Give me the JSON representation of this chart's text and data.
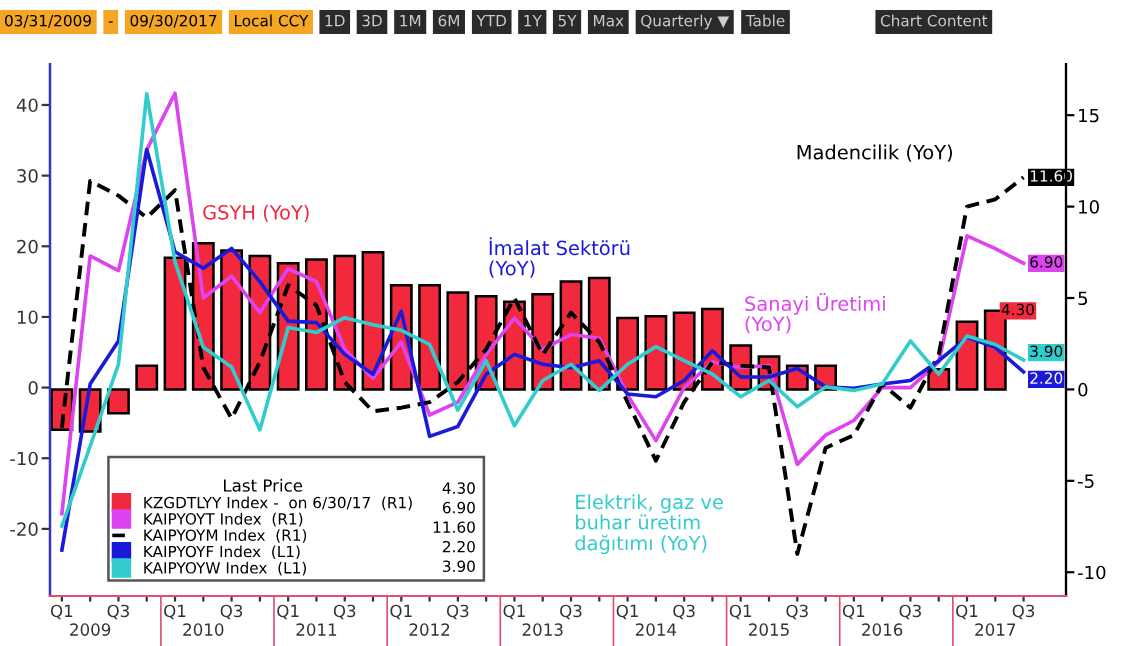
{
  "chart_data": {
    "type": "bar",
    "categories": [
      "Q1",
      "\n2009",
      "Q3",
      null,
      "Q1",
      "\n2010",
      "Q3",
      null,
      "Q1",
      "\n2011",
      "Q3",
      null,
      "Q1",
      "\n2012",
      "Q3",
      null,
      "Q1",
      "\n2013",
      "Q3",
      null,
      "Q1",
      "\n2014",
      "Q3",
      null,
      "Q1",
      "\n2015",
      "Q3",
      null,
      "Q1",
      "\n2016",
      "Q3",
      null,
      "Q1",
      "\n2017",
      "Q3"
    ],
    "series": [
      {
        "name": "KZGDTLYY Index -  on 6/30/17  (R1)",
        "type": "bar",
        "axis": "y2",
        "color": "#f2283c",
        "values": [
          -2.2,
          -2.3,
          -1.3,
          1.3,
          7.2,
          8.0,
          7.6,
          7.3,
          6.9,
          7.1,
          7.3,
          7.5,
          5.7,
          5.7,
          5.3,
          5.1,
          4.8,
          5.2,
          5.9,
          6.1,
          3.9,
          4.0,
          4.2,
          4.4,
          2.4,
          1.8,
          1.3,
          1.3,
          null,
          null,
          null,
          1.1,
          3.7,
          4.3,
          null
        ],
        "value_labels": [
          null,
          null,
          null,
          null,
          null,
          null,
          null,
          null,
          null,
          null,
          null,
          null,
          null,
          null,
          null,
          null,
          null,
          null,
          null,
          null,
          null,
          null,
          null,
          null,
          null,
          null,
          null,
          null,
          null,
          null,
          null,
          null,
          null,
          "4.30",
          null
        ]
      },
      {
        "name": "KAIPYOYT Index  (R1)",
        "type": "line",
        "axis": "y2",
        "color": "#dd44f0",
        "line_style": "solid",
        "values": [
          -6.8,
          7.3,
          6.5,
          13.1,
          16.2,
          5.0,
          6.2,
          4.2,
          6.6,
          5.9,
          2.2,
          0.6,
          2.6,
          -1.4,
          -0.7,
          1.9,
          3.9,
          2.2,
          3.0,
          2.8,
          -0.3,
          -2.8,
          0.1,
          1.5,
          1.2,
          1.3,
          -4.1,
          -2.5,
          -1.7,
          0.1,
          0.1,
          1.5,
          8.4,
          7.7,
          6.9
        ],
        "value_labels": [
          null,
          null,
          null,
          null,
          null,
          null,
          null,
          null,
          null,
          null,
          null,
          null,
          null,
          null,
          null,
          null,
          null,
          null,
          null,
          null,
          null,
          null,
          null,
          null,
          null,
          null,
          null,
          null,
          null,
          null,
          null,
          null,
          null,
          null,
          "6.90"
        ]
      },
      {
        "name": "KAIPYOYM Index  (R1)",
        "type": "line",
        "axis": "y2",
        "color": "#000000",
        "line_style": "dashed",
        "values": [
          -2.1,
          11.4,
          10.6,
          9.4,
          10.9,
          1.2,
          -1.6,
          1.5,
          5.7,
          4.6,
          0.4,
          -1.2,
          -1.0,
          -0.7,
          0.4,
          2.2,
          5.0,
          1.9,
          4.2,
          2.6,
          -0.7,
          -3.9,
          -0.7,
          1.5,
          1.3,
          1.2,
          -9.0,
          -3.2,
          -2.5,
          0.3,
          -1.0,
          1.9,
          10.0,
          10.4,
          11.6
        ],
        "value_labels": [
          null,
          null,
          null,
          null,
          null,
          null,
          null,
          null,
          null,
          null,
          null,
          null,
          null,
          null,
          null,
          null,
          null,
          null,
          null,
          null,
          null,
          null,
          null,
          null,
          null,
          null,
          null,
          null,
          null,
          null,
          null,
          null,
          null,
          null,
          "11.60"
        ]
      },
      {
        "name": "KAIPYOYF Index  (L1)",
        "type": "line",
        "axis": "y",
        "color": "#1a1ad8",
        "line_style": "solid",
        "values": [
          -23.0,
          0.5,
          6.6,
          33.7,
          19.2,
          16.9,
          19.7,
          15.0,
          9.4,
          9.2,
          4.7,
          1.9,
          10.8,
          -6.9,
          -5.5,
          1.9,
          4.7,
          3.3,
          2.8,
          3.8,
          -0.9,
          -1.3,
          1.0,
          5.2,
          1.5,
          1.5,
          2.7,
          0.1,
          -0.1,
          0.5,
          1.0,
          3.8,
          7.1,
          5.7,
          2.2
        ],
        "value_labels": [
          null,
          null,
          null,
          null,
          null,
          null,
          null,
          null,
          null,
          null,
          null,
          null,
          null,
          null,
          null,
          null,
          null,
          null,
          null,
          null,
          null,
          null,
          null,
          null,
          null,
          null,
          null,
          null,
          null,
          null,
          null,
          null,
          null,
          null,
          "2.20"
        ]
      },
      {
        "name": "KAIPYOYW Index  (L1)",
        "type": "line",
        "axis": "y",
        "color": "#33cccc",
        "line_style": "solid",
        "values": [
          -19.6,
          -8.3,
          3.3,
          41.6,
          17.8,
          5.7,
          2.9,
          -6.0,
          8.5,
          7.8,
          9.9,
          8.9,
          8.1,
          6.1,
          -3.2,
          3.8,
          -5.4,
          1.0,
          3.3,
          -0.4,
          3.3,
          5.8,
          3.8,
          1.9,
          -1.3,
          1.0,
          -2.7,
          0.1,
          -0.4,
          0.5,
          6.6,
          1.9,
          7.3,
          6.1,
          3.9
        ],
        "value_labels": [
          null,
          null,
          null,
          null,
          null,
          null,
          null,
          null,
          null,
          null,
          null,
          null,
          null,
          null,
          null,
          null,
          null,
          null,
          null,
          null,
          null,
          null,
          null,
          null,
          null,
          null,
          null,
          null,
          null,
          null,
          null,
          null,
          null,
          null,
          "3.90"
        ]
      }
    ],
    "ylim": [
      -29.5,
      45.8
    ],
    "yticks": [
      -20,
      -10,
      0,
      10,
      20,
      30,
      40
    ],
    "y2lim": [
      -11.3,
      17.8
    ],
    "y2ticks": [
      -10,
      -5,
      0,
      5,
      10,
      15
    ],
    "legend": "bottom left",
    "legend_title": "Last Price",
    "grid": false,
    "annotations": [
      "GSYH (YoY)",
      "İmalat Sektörü\n(YoY)",
      "Sanayi Üretimi\n(YoY)",
      "Elektrik, gaz ve\nbuhar üretim\ndağıtımı (YoY)",
      "Madencilik (YoY)",
      "03/31/2009",
      "-",
      "09/30/2017",
      "Local CCY",
      "1D",
      "3D",
      "1M",
      "6M",
      "YTD",
      "1Y",
      "5Y",
      "Max",
      "Quarterly ▼",
      "Table",
      "Chart Content"
    ]
  }
}
